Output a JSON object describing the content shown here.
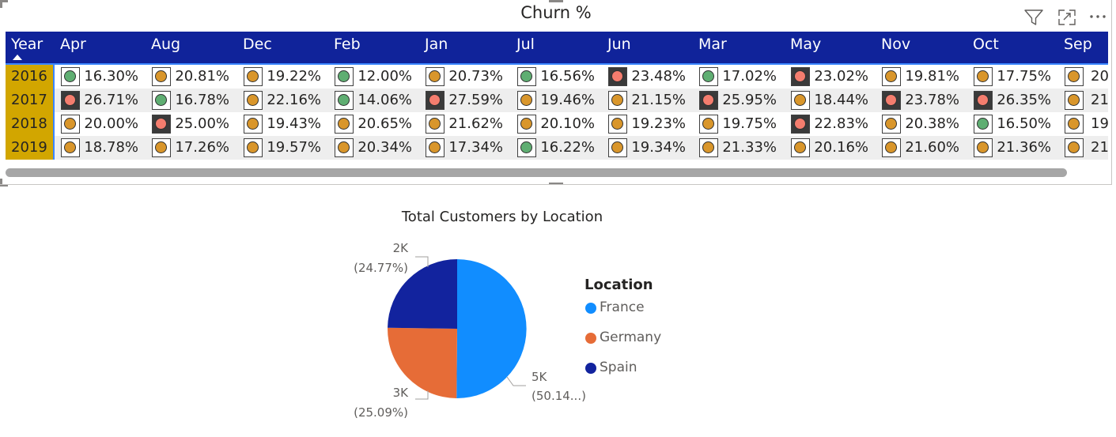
{
  "matrix": {
    "title": "Churn %",
    "columns": [
      "Year",
      "Apr",
      "Aug",
      "Dec",
      "Feb",
      "Jan",
      "Jul",
      "Jun",
      "Mar",
      "May",
      "Nov",
      "Oct",
      "Sep"
    ],
    "rows": [
      {
        "year": "2016",
        "cells": [
          {
            "value": "16.30%",
            "status": "green"
          },
          {
            "value": "20.81%",
            "status": "amber"
          },
          {
            "value": "19.22%",
            "status": "amber"
          },
          {
            "value": "12.00%",
            "status": "green"
          },
          {
            "value": "20.73%",
            "status": "amber"
          },
          {
            "value": "16.56%",
            "status": "green"
          },
          {
            "value": "23.48%",
            "status": "red"
          },
          {
            "value": "17.02%",
            "status": "green"
          },
          {
            "value": "23.02%",
            "status": "red"
          },
          {
            "value": "19.81%",
            "status": "amber"
          },
          {
            "value": "17.75%",
            "status": "amber"
          },
          {
            "value": "20",
            "status": "amber"
          }
        ]
      },
      {
        "year": "2017",
        "cells": [
          {
            "value": "26.71%",
            "status": "red"
          },
          {
            "value": "16.78%",
            "status": "green"
          },
          {
            "value": "22.16%",
            "status": "amber"
          },
          {
            "value": "14.06%",
            "status": "green"
          },
          {
            "value": "27.59%",
            "status": "red"
          },
          {
            "value": "19.46%",
            "status": "amber"
          },
          {
            "value": "21.15%",
            "status": "amber"
          },
          {
            "value": "25.95%",
            "status": "red"
          },
          {
            "value": "18.44%",
            "status": "amber"
          },
          {
            "value": "23.78%",
            "status": "red"
          },
          {
            "value": "26.35%",
            "status": "red"
          },
          {
            "value": "21",
            "status": "amber"
          }
        ]
      },
      {
        "year": "2018",
        "cells": [
          {
            "value": "20.00%",
            "status": "amber"
          },
          {
            "value": "25.00%",
            "status": "red"
          },
          {
            "value": "19.43%",
            "status": "amber"
          },
          {
            "value": "20.65%",
            "status": "amber"
          },
          {
            "value": "21.62%",
            "status": "amber"
          },
          {
            "value": "20.10%",
            "status": "amber"
          },
          {
            "value": "19.23%",
            "status": "amber"
          },
          {
            "value": "19.75%",
            "status": "amber"
          },
          {
            "value": "22.83%",
            "status": "red"
          },
          {
            "value": "20.38%",
            "status": "amber"
          },
          {
            "value": "16.50%",
            "status": "green"
          },
          {
            "value": "19",
            "status": "amber"
          }
        ]
      },
      {
        "year": "2019",
        "cells": [
          {
            "value": "18.78%",
            "status": "amber"
          },
          {
            "value": "17.26%",
            "status": "amber"
          },
          {
            "value": "19.57%",
            "status": "amber"
          },
          {
            "value": "20.34%",
            "status": "amber"
          },
          {
            "value": "17.34%",
            "status": "amber"
          },
          {
            "value": "16.22%",
            "status": "green"
          },
          {
            "value": "19.34%",
            "status": "amber"
          },
          {
            "value": "21.33%",
            "status": "amber"
          },
          {
            "value": "20.16%",
            "status": "amber"
          },
          {
            "value": "21.60%",
            "status": "amber"
          },
          {
            "value": "21.36%",
            "status": "amber"
          },
          {
            "value": "21",
            "status": "amber"
          }
        ]
      }
    ],
    "status_colors": {
      "green": "#5fae72",
      "amber": "#d9962b",
      "red": "#f47d6e"
    },
    "colors": {
      "header_bg": "#10239a",
      "year_bg": "#d2a600",
      "accent": "#3a86ff",
      "row_alt": "#eeeeee"
    },
    "header_icons": [
      "filter-icon",
      "focus-mode-icon",
      "more-options-icon"
    ],
    "sort_indicator": "sort-ascending-icon"
  },
  "chart_data": {
    "type": "pie",
    "title": "Total Customers by Location",
    "legend_title": "Location",
    "legend_position": "right",
    "slices": [
      {
        "name": "France",
        "value": 5014,
        "value_label": "5K",
        "percent_label": "(50.14...)",
        "color": "#118dff"
      },
      {
        "name": "Germany",
        "value": 2509,
        "value_label": "3K",
        "percent_label": "(25.09%)",
        "color": "#e66c37"
      },
      {
        "name": "Spain",
        "value": 2477,
        "value_label": "2K",
        "percent_label": "(24.77%)",
        "color": "#12239e"
      }
    ]
  }
}
